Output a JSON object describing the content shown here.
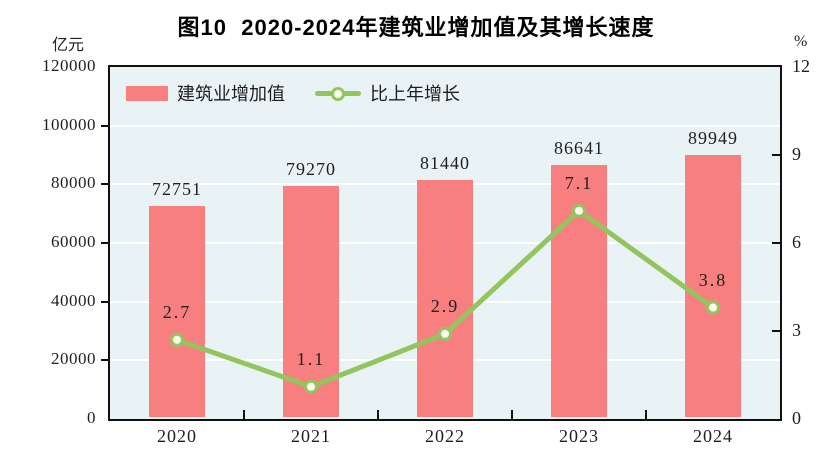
{
  "title": "图10  2020-2024年建筑业增加值及其增长速度",
  "left_axis_unit": "亿元",
  "right_axis_unit": "%",
  "legend": {
    "bar_label": "建筑业增加值",
    "line_label": "比上年增长"
  },
  "colors": {
    "bar": "#f87f80",
    "line": "#92c55e",
    "marker_fill": "#fffef5",
    "plot_bg": "#e9f2f5",
    "grid": "#ffffff",
    "axis": "#111111",
    "text": "#1f1f1f"
  },
  "chart_data": {
    "type": "bar+line",
    "categories": [
      "2020",
      "2021",
      "2022",
      "2023",
      "2024"
    ],
    "series": [
      {
        "name": "建筑业增加值",
        "type": "bar",
        "axis": "left",
        "values": [
          72751,
          79270,
          81440,
          86641,
          89949
        ],
        "labels": [
          "72751",
          "79270",
          "81440",
          "86641",
          "89949"
        ]
      },
      {
        "name": "比上年增长",
        "type": "line",
        "axis": "right",
        "values": [
          2.7,
          1.1,
          2.9,
          7.1,
          3.8
        ],
        "labels": [
          "2.7",
          "1.1",
          "2.9",
          "7.1",
          "3.8"
        ]
      }
    ],
    "left_ylim": [
      0,
      120000
    ],
    "left_ticks": [
      0,
      20000,
      40000,
      60000,
      80000,
      100000,
      120000
    ],
    "left_tick_labels": [
      "0",
      "20000",
      "40000",
      "60000",
      "80000",
      "100000",
      "120000"
    ],
    "right_ylim": [
      0,
      12
    ],
    "right_ticks": [
      0,
      3,
      6,
      9,
      12
    ],
    "right_tick_labels": [
      "0",
      "3",
      "6",
      "9",
      "12"
    ],
    "grid": true,
    "legend_position": "top-left-inside"
  }
}
